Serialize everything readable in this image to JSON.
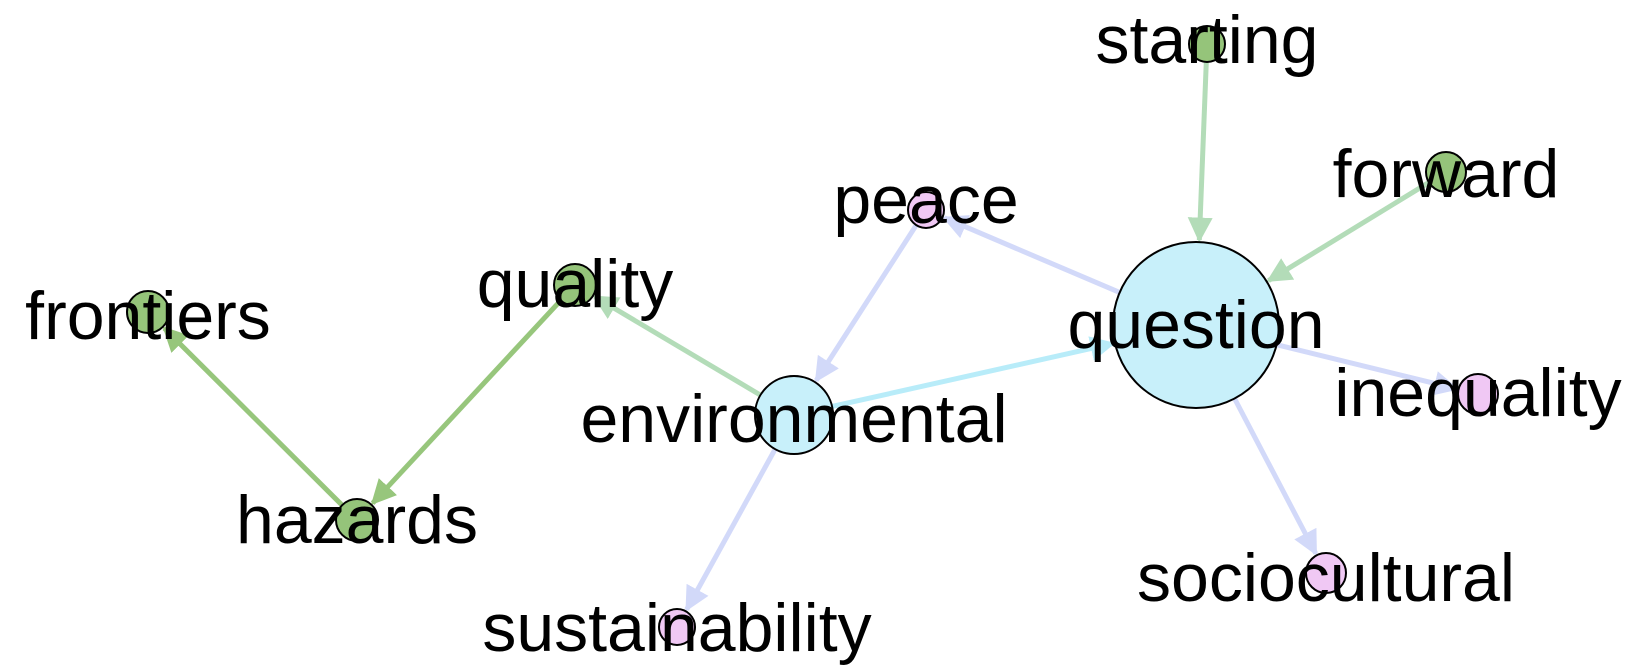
{
  "colors": {
    "green_node": "#95c47a",
    "pink_node": "#f0c8f4",
    "blue_node": "#c8f0fa",
    "green_edge_light": "#b3dcb8",
    "green_edge_dark": "#97c67c",
    "blue_edge": "#b8ecf9",
    "lavender_edge": "#d2d9f9"
  },
  "nodes": [
    {
      "id": "starting",
      "label": "starting",
      "color": "green"
    },
    {
      "id": "forward",
      "label": "forward",
      "color": "green"
    },
    {
      "id": "peace",
      "label": "peace",
      "color": "pink"
    },
    {
      "id": "quality",
      "label": "quality",
      "color": "green"
    },
    {
      "id": "frontiers",
      "label": "frontiers",
      "color": "green"
    },
    {
      "id": "question",
      "label": "question",
      "color": "blue"
    },
    {
      "id": "inequality",
      "label": "inequality",
      "color": "pink"
    },
    {
      "id": "environmental",
      "label": "environmental",
      "color": "blue"
    },
    {
      "id": "hazards",
      "label": "hazards",
      "color": "green"
    },
    {
      "id": "sociocultural",
      "label": "sociocultural",
      "color": "pink"
    },
    {
      "id": "sustainability",
      "label": "sustainability",
      "color": "pink"
    }
  ],
  "edges": [
    {
      "source": "starting",
      "target": "question",
      "color": "green_edge_light"
    },
    {
      "source": "forward",
      "target": "question",
      "color": "green_edge_light"
    },
    {
      "source": "question",
      "target": "peace",
      "color": "lavender_edge"
    },
    {
      "source": "question",
      "target": "inequality",
      "color": "lavender_edge"
    },
    {
      "source": "question",
      "target": "sociocultural",
      "color": "lavender_edge"
    },
    {
      "source": "environmental",
      "target": "question",
      "color": "blue_edge"
    },
    {
      "source": "peace",
      "target": "environmental",
      "color": "lavender_edge"
    },
    {
      "source": "environmental",
      "target": "quality",
      "color": "green_edge_light"
    },
    {
      "source": "environmental",
      "target": "sustainability",
      "color": "lavender_edge"
    },
    {
      "source": "quality",
      "target": "hazards",
      "color": "green_edge_dark"
    },
    {
      "source": "hazards",
      "target": "frontiers",
      "color": "green_edge_dark"
    }
  ]
}
